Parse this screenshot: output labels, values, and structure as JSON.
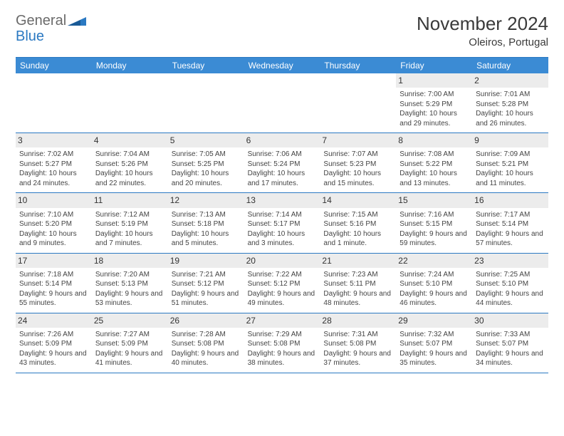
{
  "logo": {
    "text1": "General",
    "text2": "Blue"
  },
  "title": {
    "month": "November 2024",
    "location": "Oleiros, Portugal"
  },
  "colors": {
    "header_bg": "#3b8bd4",
    "header_text": "#ffffff",
    "border": "#2b79c2",
    "cell_text": "#444444",
    "daynum_bg": "#ececec",
    "logo_gray": "#6a6a6a",
    "logo_blue": "#2b79c2"
  },
  "day_names": [
    "Sunday",
    "Monday",
    "Tuesday",
    "Wednesday",
    "Thursday",
    "Friday",
    "Saturday"
  ],
  "weeks": [
    [
      {
        "day": "",
        "lines": []
      },
      {
        "day": "",
        "lines": []
      },
      {
        "day": "",
        "lines": []
      },
      {
        "day": "",
        "lines": []
      },
      {
        "day": "",
        "lines": []
      },
      {
        "day": "1",
        "lines": [
          "Sunrise: 7:00 AM",
          "Sunset: 5:29 PM",
          "Daylight: 10 hours and 29 minutes."
        ]
      },
      {
        "day": "2",
        "lines": [
          "Sunrise: 7:01 AM",
          "Sunset: 5:28 PM",
          "Daylight: 10 hours and 26 minutes."
        ]
      }
    ],
    [
      {
        "day": "3",
        "lines": [
          "Sunrise: 7:02 AM",
          "Sunset: 5:27 PM",
          "Daylight: 10 hours and 24 minutes."
        ]
      },
      {
        "day": "4",
        "lines": [
          "Sunrise: 7:04 AM",
          "Sunset: 5:26 PM",
          "Daylight: 10 hours and 22 minutes."
        ]
      },
      {
        "day": "5",
        "lines": [
          "Sunrise: 7:05 AM",
          "Sunset: 5:25 PM",
          "Daylight: 10 hours and 20 minutes."
        ]
      },
      {
        "day": "6",
        "lines": [
          "Sunrise: 7:06 AM",
          "Sunset: 5:24 PM",
          "Daylight: 10 hours and 17 minutes."
        ]
      },
      {
        "day": "7",
        "lines": [
          "Sunrise: 7:07 AM",
          "Sunset: 5:23 PM",
          "Daylight: 10 hours and 15 minutes."
        ]
      },
      {
        "day": "8",
        "lines": [
          "Sunrise: 7:08 AM",
          "Sunset: 5:22 PM",
          "Daylight: 10 hours and 13 minutes."
        ]
      },
      {
        "day": "9",
        "lines": [
          "Sunrise: 7:09 AM",
          "Sunset: 5:21 PM",
          "Daylight: 10 hours and 11 minutes."
        ]
      }
    ],
    [
      {
        "day": "10",
        "lines": [
          "Sunrise: 7:10 AM",
          "Sunset: 5:20 PM",
          "Daylight: 10 hours and 9 minutes."
        ]
      },
      {
        "day": "11",
        "lines": [
          "Sunrise: 7:12 AM",
          "Sunset: 5:19 PM",
          "Daylight: 10 hours and 7 minutes."
        ]
      },
      {
        "day": "12",
        "lines": [
          "Sunrise: 7:13 AM",
          "Sunset: 5:18 PM",
          "Daylight: 10 hours and 5 minutes."
        ]
      },
      {
        "day": "13",
        "lines": [
          "Sunrise: 7:14 AM",
          "Sunset: 5:17 PM",
          "Daylight: 10 hours and 3 minutes."
        ]
      },
      {
        "day": "14",
        "lines": [
          "Sunrise: 7:15 AM",
          "Sunset: 5:16 PM",
          "Daylight: 10 hours and 1 minute."
        ]
      },
      {
        "day": "15",
        "lines": [
          "Sunrise: 7:16 AM",
          "Sunset: 5:15 PM",
          "Daylight: 9 hours and 59 minutes."
        ]
      },
      {
        "day": "16",
        "lines": [
          "Sunrise: 7:17 AM",
          "Sunset: 5:14 PM",
          "Daylight: 9 hours and 57 minutes."
        ]
      }
    ],
    [
      {
        "day": "17",
        "lines": [
          "Sunrise: 7:18 AM",
          "Sunset: 5:14 PM",
          "Daylight: 9 hours and 55 minutes."
        ]
      },
      {
        "day": "18",
        "lines": [
          "Sunrise: 7:20 AM",
          "Sunset: 5:13 PM",
          "Daylight: 9 hours and 53 minutes."
        ]
      },
      {
        "day": "19",
        "lines": [
          "Sunrise: 7:21 AM",
          "Sunset: 5:12 PM",
          "Daylight: 9 hours and 51 minutes."
        ]
      },
      {
        "day": "20",
        "lines": [
          "Sunrise: 7:22 AM",
          "Sunset: 5:12 PM",
          "Daylight: 9 hours and 49 minutes."
        ]
      },
      {
        "day": "21",
        "lines": [
          "Sunrise: 7:23 AM",
          "Sunset: 5:11 PM",
          "Daylight: 9 hours and 48 minutes."
        ]
      },
      {
        "day": "22",
        "lines": [
          "Sunrise: 7:24 AM",
          "Sunset: 5:10 PM",
          "Daylight: 9 hours and 46 minutes."
        ]
      },
      {
        "day": "23",
        "lines": [
          "Sunrise: 7:25 AM",
          "Sunset: 5:10 PM",
          "Daylight: 9 hours and 44 minutes."
        ]
      }
    ],
    [
      {
        "day": "24",
        "lines": [
          "Sunrise: 7:26 AM",
          "Sunset: 5:09 PM",
          "Daylight: 9 hours and 43 minutes."
        ]
      },
      {
        "day": "25",
        "lines": [
          "Sunrise: 7:27 AM",
          "Sunset: 5:09 PM",
          "Daylight: 9 hours and 41 minutes."
        ]
      },
      {
        "day": "26",
        "lines": [
          "Sunrise: 7:28 AM",
          "Sunset: 5:08 PM",
          "Daylight: 9 hours and 40 minutes."
        ]
      },
      {
        "day": "27",
        "lines": [
          "Sunrise: 7:29 AM",
          "Sunset: 5:08 PM",
          "Daylight: 9 hours and 38 minutes."
        ]
      },
      {
        "day": "28",
        "lines": [
          "Sunrise: 7:31 AM",
          "Sunset: 5:08 PM",
          "Daylight: 9 hours and 37 minutes."
        ]
      },
      {
        "day": "29",
        "lines": [
          "Sunrise: 7:32 AM",
          "Sunset: 5:07 PM",
          "Daylight: 9 hours and 35 minutes."
        ]
      },
      {
        "day": "30",
        "lines": [
          "Sunrise: 7:33 AM",
          "Sunset: 5:07 PM",
          "Daylight: 9 hours and 34 minutes."
        ]
      }
    ]
  ]
}
